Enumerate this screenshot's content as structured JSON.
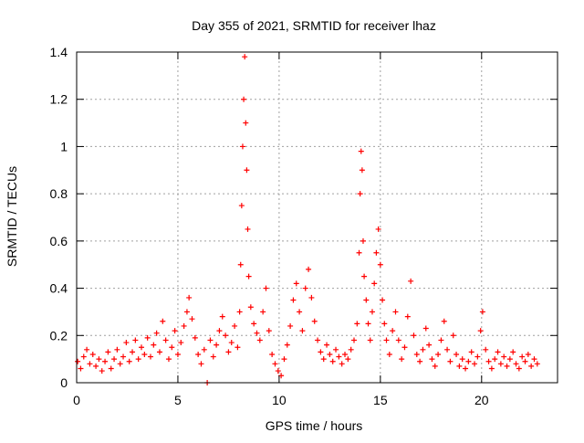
{
  "chart_data": {
    "type": "scatter",
    "title": "Day 355 of 2021, SRMTID for receiver lhaz",
    "xlabel": "GPS time / hours",
    "ylabel": "SRMTID / TECUs",
    "xlim": [
      0,
      23.75
    ],
    "ylim": [
      0,
      1.4
    ],
    "grid": true,
    "marker": "+",
    "series_color": "#ff0000",
    "x_ticks": [
      {
        "value": 0,
        "label": "0"
      },
      {
        "value": 5,
        "label": "5"
      },
      {
        "value": 10,
        "label": "10"
      },
      {
        "value": 15,
        "label": "15"
      },
      {
        "value": 20,
        "label": "20"
      }
    ],
    "y_ticks": [
      {
        "value": 0,
        "label": "0"
      },
      {
        "value": 0.2,
        "label": "0.2"
      },
      {
        "value": 0.4,
        "label": "0.4"
      },
      {
        "value": 0.6,
        "label": "0.6"
      },
      {
        "value": 0.8,
        "label": "0.8"
      },
      {
        "value": 1.0,
        "label": "1"
      },
      {
        "value": 1.2,
        "label": "1.2"
      },
      {
        "value": 1.4,
        "label": "1.4"
      }
    ],
    "series": [
      {
        "name": "SRMTID",
        "points": [
          [
            0.05,
            0.09
          ],
          [
            0.2,
            0.06
          ],
          [
            0.35,
            0.11
          ],
          [
            0.5,
            0.14
          ],
          [
            0.65,
            0.08
          ],
          [
            0.8,
            0.12
          ],
          [
            0.95,
            0.07
          ],
          [
            1.1,
            0.1
          ],
          [
            1.25,
            0.05
          ],
          [
            1.4,
            0.09
          ],
          [
            1.55,
            0.13
          ],
          [
            1.7,
            0.06
          ],
          [
            1.85,
            0.1
          ],
          [
            2.0,
            0.14
          ],
          [
            2.15,
            0.08
          ],
          [
            2.3,
            0.11
          ],
          [
            2.45,
            0.17
          ],
          [
            2.6,
            0.09
          ],
          [
            2.75,
            0.13
          ],
          [
            2.9,
            0.18
          ],
          [
            3.05,
            0.1
          ],
          [
            3.2,
            0.15
          ],
          [
            3.35,
            0.12
          ],
          [
            3.5,
            0.19
          ],
          [
            3.65,
            0.11
          ],
          [
            3.8,
            0.16
          ],
          [
            3.95,
            0.21
          ],
          [
            4.1,
            0.13
          ],
          [
            4.25,
            0.26
          ],
          [
            4.4,
            0.18
          ],
          [
            4.55,
            0.1
          ],
          [
            4.7,
            0.15
          ],
          [
            4.85,
            0.22
          ],
          [
            5.0,
            0.12
          ],
          [
            5.15,
            0.17
          ],
          [
            5.3,
            0.24
          ],
          [
            5.45,
            0.3
          ],
          [
            5.55,
            0.36
          ],
          [
            5.7,
            0.27
          ],
          [
            5.85,
            0.19
          ],
          [
            6.0,
            0.12
          ],
          [
            6.15,
            0.08
          ],
          [
            6.3,
            0.14
          ],
          [
            6.45,
            0.0
          ],
          [
            6.6,
            0.18
          ],
          [
            6.75,
            0.11
          ],
          [
            6.9,
            0.16
          ],
          [
            7.05,
            0.22
          ],
          [
            7.2,
            0.28
          ],
          [
            7.35,
            0.2
          ],
          [
            7.5,
            0.13
          ],
          [
            7.65,
            0.17
          ],
          [
            7.8,
            0.24
          ],
          [
            7.95,
            0.15
          ],
          [
            8.05,
            0.3
          ],
          [
            8.1,
            0.5
          ],
          [
            8.15,
            0.75
          ],
          [
            8.2,
            1.0
          ],
          [
            8.25,
            1.2
          ],
          [
            8.3,
            1.38
          ],
          [
            8.35,
            1.1
          ],
          [
            8.4,
            0.9
          ],
          [
            8.45,
            0.65
          ],
          [
            8.5,
            0.45
          ],
          [
            8.6,
            0.32
          ],
          [
            8.75,
            0.25
          ],
          [
            8.9,
            0.21
          ],
          [
            9.05,
            0.18
          ],
          [
            9.2,
            0.3
          ],
          [
            9.35,
            0.4
          ],
          [
            9.5,
            0.22
          ],
          [
            9.65,
            0.12
          ],
          [
            9.8,
            0.08
          ],
          [
            9.95,
            0.05
          ],
          [
            10.1,
            0.03
          ],
          [
            10.25,
            0.1
          ],
          [
            10.4,
            0.16
          ],
          [
            10.55,
            0.24
          ],
          [
            10.7,
            0.35
          ],
          [
            10.85,
            0.42
          ],
          [
            11.0,
            0.3
          ],
          [
            11.15,
            0.22
          ],
          [
            11.3,
            0.4
          ],
          [
            11.45,
            0.48
          ],
          [
            11.6,
            0.36
          ],
          [
            11.75,
            0.26
          ],
          [
            11.9,
            0.18
          ],
          [
            12.05,
            0.13
          ],
          [
            12.2,
            0.1
          ],
          [
            12.35,
            0.16
          ],
          [
            12.5,
            0.12
          ],
          [
            12.65,
            0.09
          ],
          [
            12.8,
            0.14
          ],
          [
            12.95,
            0.11
          ],
          [
            13.1,
            0.08
          ],
          [
            13.25,
            0.12
          ],
          [
            13.4,
            0.1
          ],
          [
            13.55,
            0.14
          ],
          [
            13.7,
            0.18
          ],
          [
            13.85,
            0.25
          ],
          [
            13.95,
            0.55
          ],
          [
            14.0,
            0.8
          ],
          [
            14.05,
            0.98
          ],
          [
            14.1,
            0.9
          ],
          [
            14.15,
            0.6
          ],
          [
            14.2,
            0.45
          ],
          [
            14.3,
            0.35
          ],
          [
            14.4,
            0.25
          ],
          [
            14.5,
            0.18
          ],
          [
            14.6,
            0.3
          ],
          [
            14.7,
            0.42
          ],
          [
            14.8,
            0.55
          ],
          [
            14.9,
            0.65
          ],
          [
            15.0,
            0.5
          ],
          [
            15.1,
            0.35
          ],
          [
            15.2,
            0.25
          ],
          [
            15.3,
            0.18
          ],
          [
            15.45,
            0.12
          ],
          [
            15.6,
            0.22
          ],
          [
            15.75,
            0.3
          ],
          [
            15.9,
            0.18
          ],
          [
            16.05,
            0.1
          ],
          [
            16.2,
            0.15
          ],
          [
            16.35,
            0.28
          ],
          [
            16.5,
            0.43
          ],
          [
            16.65,
            0.2
          ],
          [
            16.8,
            0.12
          ],
          [
            16.95,
            0.09
          ],
          [
            17.1,
            0.14
          ],
          [
            17.25,
            0.23
          ],
          [
            17.4,
            0.16
          ],
          [
            17.55,
            0.1
          ],
          [
            17.7,
            0.07
          ],
          [
            17.85,
            0.12
          ],
          [
            18.0,
            0.18
          ],
          [
            18.15,
            0.26
          ],
          [
            18.3,
            0.14
          ],
          [
            18.45,
            0.09
          ],
          [
            18.6,
            0.2
          ],
          [
            18.75,
            0.12
          ],
          [
            18.9,
            0.07
          ],
          [
            19.05,
            0.1
          ],
          [
            19.2,
            0.06
          ],
          [
            19.35,
            0.09
          ],
          [
            19.5,
            0.13
          ],
          [
            19.65,
            0.08
          ],
          [
            19.8,
            0.11
          ],
          [
            19.95,
            0.22
          ],
          [
            20.05,
            0.3
          ],
          [
            20.2,
            0.14
          ],
          [
            20.35,
            0.09
          ],
          [
            20.5,
            0.06
          ],
          [
            20.65,
            0.1
          ],
          [
            20.8,
            0.13
          ],
          [
            20.95,
            0.08
          ],
          [
            21.1,
            0.11
          ],
          [
            21.25,
            0.07
          ],
          [
            21.4,
            0.1
          ],
          [
            21.55,
            0.13
          ],
          [
            21.7,
            0.08
          ],
          [
            21.85,
            0.06
          ],
          [
            22.0,
            0.11
          ],
          [
            22.15,
            0.09
          ],
          [
            22.3,
            0.12
          ],
          [
            22.45,
            0.07
          ],
          [
            22.6,
            0.1
          ],
          [
            22.75,
            0.08
          ]
        ]
      }
    ]
  }
}
